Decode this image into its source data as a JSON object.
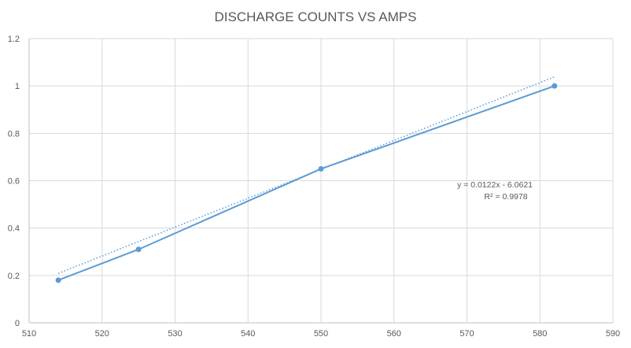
{
  "chart_data": {
    "type": "scatter",
    "title": "DISCHARGE COUNTS VS AMPS",
    "xlabel": "",
    "ylabel": "",
    "xlim": [
      510,
      590
    ],
    "ylim": [
      0,
      1.2
    ],
    "x_ticks": [
      "510",
      "520",
      "530",
      "540",
      "550",
      "560",
      "570",
      "580",
      "590"
    ],
    "y_ticks": [
      "0",
      "0.2",
      "0.4",
      "0.6",
      "0.8",
      "1",
      "1.2"
    ],
    "grid": true,
    "legend": "none",
    "series": [
      {
        "x": [
          514,
          525,
          550,
          582
        ],
        "y": [
          0.18,
          0.31,
          0.65,
          1.0
        ],
        "color": "#5b9bd5",
        "style": "line-with-markers"
      }
    ],
    "trendline": {
      "type": "linear",
      "slope": 0.0122,
      "intercept": -6.0621,
      "x_range": [
        514,
        582
      ],
      "style": "dotted",
      "color": "#5b9bd5",
      "equation": "y = 0.0122x - 6.0621",
      "r_squared": "R² = 0.9978"
    }
  },
  "colors": {
    "grid": "#d9d9d9",
    "axis": "#bfbfbf",
    "text": "#595959",
    "series": "#5b9bd5"
  }
}
